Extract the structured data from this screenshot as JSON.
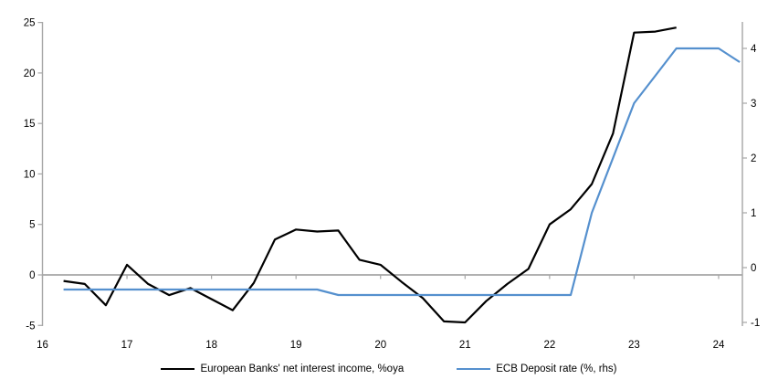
{
  "chart_data": {
    "type": "line",
    "title": "",
    "x": [
      16.25,
      16.5,
      16.75,
      17.0,
      17.25,
      17.5,
      17.75,
      18.0,
      18.25,
      18.5,
      18.75,
      19.0,
      19.25,
      19.5,
      19.75,
      20.0,
      20.25,
      20.5,
      20.75,
      21.0,
      21.25,
      21.5,
      21.75,
      22.0,
      22.25,
      22.5,
      22.75,
      23.0,
      23.25,
      23.5,
      23.75,
      24.0,
      24.25
    ],
    "series": [
      {
        "name": "European Banks' net interest income, %oya",
        "axis": "left",
        "color": "#000000",
        "values": [
          -0.6,
          -0.9,
          -3.0,
          1.0,
          -0.9,
          -2.0,
          -1.3,
          -2.4,
          -3.5,
          -0.8,
          3.5,
          4.5,
          4.3,
          4.4,
          1.5,
          1.0,
          -0.7,
          -2.3,
          -4.6,
          -4.7,
          -2.6,
          -0.9,
          0.6,
          5.0,
          6.5,
          9.0,
          14.0,
          24.0,
          24.1,
          24.5
        ]
      },
      {
        "name": "ECB Deposit rate (%, rhs)",
        "axis": "right",
        "color": "#5590CE",
        "values": [
          -0.4,
          -0.4,
          -0.4,
          -0.4,
          -0.4,
          -0.4,
          -0.4,
          -0.4,
          -0.4,
          -0.4,
          -0.4,
          -0.4,
          -0.4,
          -0.5,
          -0.5,
          -0.5,
          -0.5,
          -0.5,
          -0.5,
          -0.5,
          -0.5,
          -0.5,
          -0.5,
          -0.5,
          -0.5,
          1.0,
          2.0,
          3.0,
          3.5,
          4.0,
          4.0,
          4.0,
          3.75
        ]
      }
    ],
    "left_axis": {
      "ticks": [
        25,
        20,
        15,
        10,
        5,
        0,
        -5
      ],
      "min": -5,
      "max": 25
    },
    "right_axis": {
      "ticks": [
        4,
        3,
        2,
        1,
        0,
        -1
      ],
      "min": -1.07,
      "max": 4.48
    },
    "x_axis": {
      "ticks": [
        16,
        17,
        18,
        19,
        20,
        21,
        22,
        23,
        24
      ],
      "min": 16,
      "max": 24.53
    },
    "grid": "zero-line-only",
    "legend_position": "bottom",
    "colors": {
      "axis_gray": "#A6A6A6",
      "zero_line_gray": "#A6A6A6",
      "label_text": "#000000"
    }
  }
}
